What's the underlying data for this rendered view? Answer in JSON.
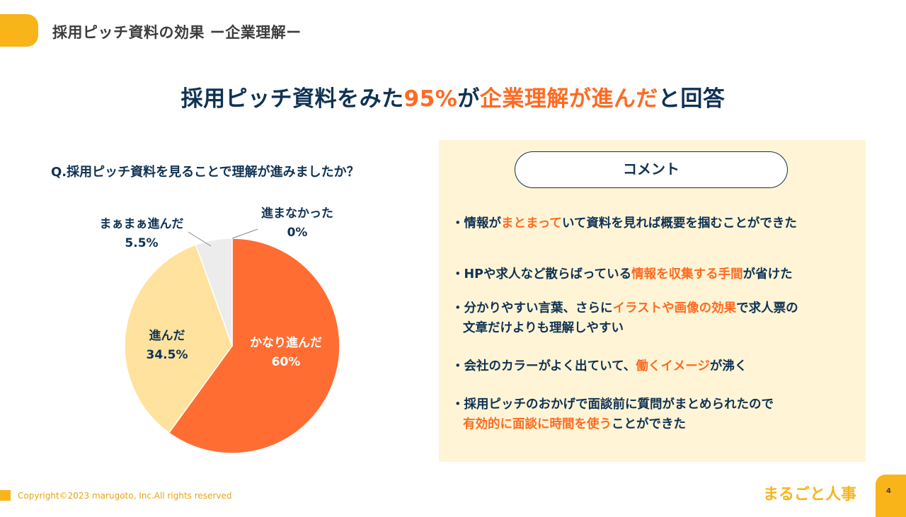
{
  "header": {
    "title": "採用ピッチ資料の効果 ー企業理解ー"
  },
  "headline": {
    "part1": "採用ピッチ資料をみた",
    "part2": "95%",
    "part3": "が",
    "part4": "企業理解が進んだ",
    "part5": "と回答"
  },
  "question": "Q.採用ピッチ資料を見ることで理解が進みましたか？",
  "chart_data": {
    "type": "pie",
    "slices": [
      {
        "label": "かなり進んだ",
        "value": 60,
        "display": "60%",
        "color": "#ff6d33"
      },
      {
        "label": "進んだ",
        "value": 34.5,
        "display": "34.5%",
        "color": "#ffe29e"
      },
      {
        "label": "まぁまぁ進んだ",
        "value": 5.5,
        "display": "5.5%",
        "color": "#ececec"
      },
      {
        "label": "進まなかった",
        "value": 0,
        "display": "0%",
        "color": "#d9d9d9"
      }
    ],
    "start_angle": "12 o'clock",
    "direction": "clockwise"
  },
  "comments": {
    "title": "コメント",
    "items": [
      {
        "lines": [
          [
            {
              "t": "・情報が",
              "h": false
            },
            {
              "t": "まとまって",
              "h": true
            },
            {
              "t": "いて資料を見れば概要を掴むことができた",
              "h": false
            }
          ]
        ]
      },
      {
        "lines": [
          [
            {
              "t": "・HPや求人など散らばっている",
              "h": false
            },
            {
              "t": "情報を収集する手間",
              "h": true
            },
            {
              "t": "が省けた",
              "h": false
            }
          ]
        ]
      },
      {
        "lines": [
          [
            {
              "t": "・分かりやすい言葉、さらに",
              "h": false
            },
            {
              "t": "イラストや画像の効果",
              "h": true
            },
            {
              "t": "で求人票の",
              "h": false
            }
          ],
          [
            {
              "t": "文章だけよりも理解しやすい",
              "h": false
            }
          ]
        ]
      },
      {
        "lines": [
          [
            {
              "t": "・会社のカラーがよく出ていて、",
              "h": false
            },
            {
              "t": "働くイメージ",
              "h": true
            },
            {
              "t": "が沸く",
              "h": false
            }
          ]
        ]
      },
      {
        "lines": [
          [
            {
              "t": "・採用ピッチのおかげで面談前に質問がまとめられたので",
              "h": false
            }
          ],
          [
            {
              "t": "有効的に面談に時間を使う",
              "h": true
            },
            {
              "t": "ことができた",
              "h": false
            }
          ]
        ]
      }
    ]
  },
  "footer": {
    "copyright": "Copyright©2023 marugoto, Inc.All rights reserved",
    "brand": "まるごと人事",
    "page_number": "4"
  },
  "colors": {
    "accent": "#f9b41a",
    "navy": "#0f3253",
    "highlight": "#ff6a21",
    "panel": "#fff5d6"
  }
}
